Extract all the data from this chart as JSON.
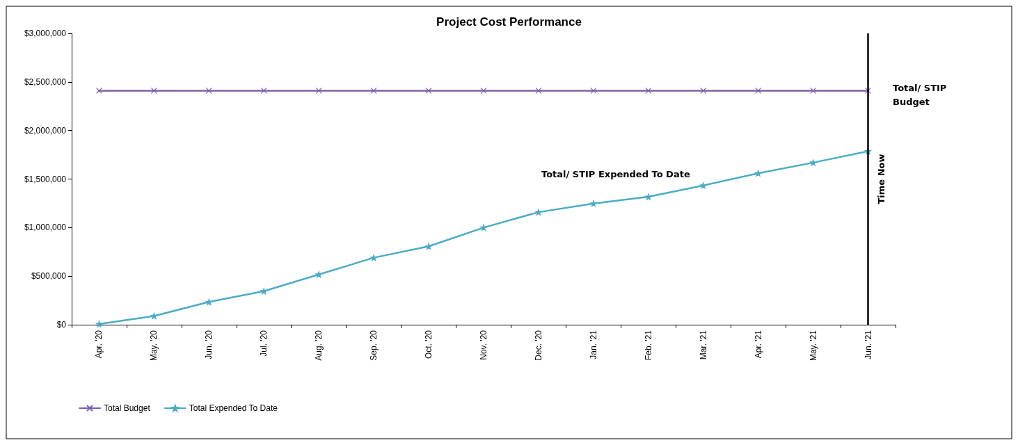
{
  "chart_data": {
    "type": "line",
    "title": "Project Cost Performance",
    "categories": [
      "Apr. '20",
      "May. '20",
      "Jun. '20",
      "Jul. '20",
      "Aug. '20",
      "Sep. '20",
      "Oct. '20",
      "Nov. '20",
      "Dec. '20",
      "Jan. '21",
      "Feb. '21",
      "Mar. '21",
      "Apr. '21",
      "May. '21",
      "Jun. '21"
    ],
    "series": [
      {
        "name": "Total Budget",
        "color": "#7f5fa8",
        "marker": "cross",
        "values": [
          2410000,
          2410000,
          2410000,
          2410000,
          2410000,
          2410000,
          2410000,
          2410000,
          2410000,
          2410000,
          2410000,
          2410000,
          2410000,
          2410000,
          2410000
        ]
      },
      {
        "name": "Total Expended To Date",
        "color": "#4bacc6",
        "marker": "star",
        "values": [
          7000,
          90000,
          234000,
          345000,
          517000,
          690000,
          807000,
          1000000,
          1159000,
          1248000,
          1317000,
          1434000,
          1559000,
          1669000,
          1786000
        ]
      }
    ],
    "ylim": [
      0,
      3000000
    ],
    "yticks": [
      {
        "value": 0,
        "label": "$0"
      },
      {
        "value": 500000,
        "label": "$500,000"
      },
      {
        "value": 1000000,
        "label": "$1,000,000"
      },
      {
        "value": 1500000,
        "label": "$1,500,000"
      },
      {
        "value": 2000000,
        "label": "$2,000,000"
      },
      {
        "value": 2500000,
        "label": "$2,500,000"
      },
      {
        "value": 3000000,
        "label": "$3,000,000"
      }
    ],
    "grid": false,
    "legend": "bottom left",
    "line_style": "solid",
    "ref_lines": [
      {
        "axis": "x",
        "value": "Jun. '21",
        "label": "Time Now",
        "color": "#000000"
      }
    ],
    "annotations": [
      "Total/ STIP Budget",
      "Total/ STIP Expended To Date"
    ]
  }
}
